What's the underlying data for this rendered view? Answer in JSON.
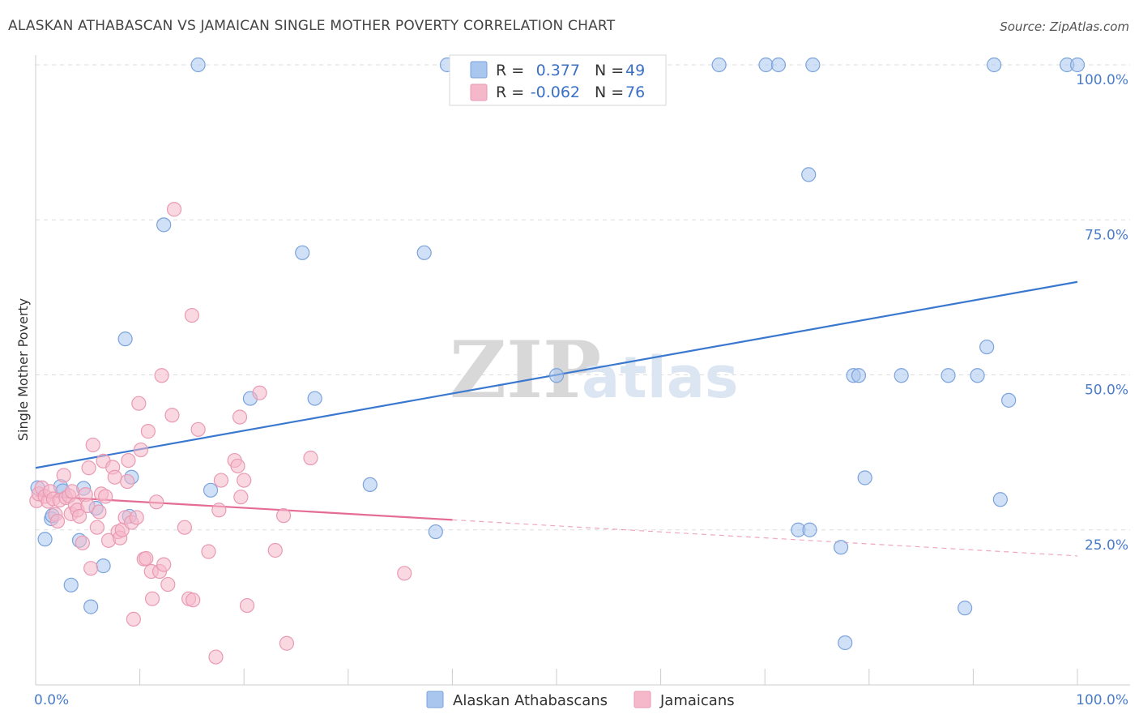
{
  "title": "ALASKAN ATHABASCAN VS JAMAICAN SINGLE MOTHER POVERTY CORRELATION CHART",
  "source": "Source: ZipAtlas.com",
  "watermark": {
    "zip": "ZIP",
    "atlas": "atlas"
  },
  "colors": {
    "blue_fill": "#a9c6ee",
    "blue_stroke": "#7ba3dc",
    "blue_line": "#3a78d0",
    "pink_fill": "#f5b8cb",
    "pink_stroke": "#e99ab3",
    "pink_line": "#e46c95",
    "tick_blue": "#4a7cc9",
    "grid": "#dddddd"
  },
  "legend": {
    "rows": [
      {
        "r_label": "R =",
        "r_value": "0.377",
        "n_label": "N =",
        "n_value": "49"
      },
      {
        "r_label": "R =",
        "r_value": "-0.062",
        "n_label": "N =",
        "n_value": "76"
      }
    ]
  },
  "chart_data": {
    "type": "scatter",
    "title": "ALASKAN ATHABASCAN VS JAMAICAN SINGLE MOTHER POVERTY CORRELATION CHART",
    "xlabel": "",
    "ylabel": "Single Mother Poverty",
    "xlim": [
      0,
      100
    ],
    "ylim": [
      0,
      100
    ],
    "grid": true,
    "legend_position": "top-center",
    "x_tick_labels": [
      "0.0%",
      "100.0%"
    ],
    "y_tick_labels": [
      {
        "value": 100,
        "label": "100.0%"
      },
      {
        "value": 75,
        "label": "75.0%"
      },
      {
        "value": 50,
        "label": "50.0%"
      },
      {
        "value": 25,
        "label": "25.0%"
      }
    ],
    "series": [
      {
        "name": "Alaskan Athabascans",
        "color": "#a9c6ee",
        "trend": {
          "x": [
            0,
            100
          ],
          "y": [
            35.0,
            65.0
          ],
          "dashed_from": null
        },
        "points": [
          [
            0.2,
            31.8
          ],
          [
            0.9,
            23.5
          ],
          [
            1.5,
            26.8
          ],
          [
            1.6,
            27.3
          ],
          [
            2.4,
            32.0
          ],
          [
            2.6,
            31.3
          ],
          [
            3.4,
            16.1
          ],
          [
            4.2,
            23.3
          ],
          [
            4.6,
            31.7
          ],
          [
            5.3,
            12.6
          ],
          [
            5.8,
            28.5
          ],
          [
            6.5,
            19.2
          ],
          [
            8.6,
            55.8
          ],
          [
            9.0,
            27.2
          ],
          [
            9.2,
            33.5
          ],
          [
            12.3,
            74.2
          ],
          [
            15.6,
            100.0
          ],
          [
            16.8,
            31.4
          ],
          [
            20.6,
            46.2
          ],
          [
            25.6,
            69.7
          ],
          [
            26.8,
            46.2
          ],
          [
            32.1,
            32.3
          ],
          [
            37.3,
            69.7
          ],
          [
            38.4,
            24.7
          ],
          [
            39.5,
            100.0
          ],
          [
            50.0,
            100.0
          ],
          [
            50.0,
            49.9
          ],
          [
            65.6,
            100.0
          ],
          [
            70.1,
            100.0
          ],
          [
            71.3,
            100.0
          ],
          [
            74.6,
            100.0
          ],
          [
            73.2,
            25.0
          ],
          [
            74.3,
            25.0
          ],
          [
            74.2,
            82.3
          ],
          [
            77.3,
            22.2
          ],
          [
            77.7,
            6.8
          ],
          [
            78.5,
            49.9
          ],
          [
            79.0,
            49.9
          ],
          [
            79.6,
            33.4
          ],
          [
            83.1,
            49.9
          ],
          [
            87.6,
            49.9
          ],
          [
            89.2,
            12.4
          ],
          [
            90.4,
            49.9
          ],
          [
            91.3,
            54.5
          ],
          [
            92.0,
            100.0
          ],
          [
            92.6,
            29.9
          ],
          [
            93.4,
            45.9
          ],
          [
            99.0,
            100.0
          ],
          [
            100.0,
            100.0
          ]
        ]
      },
      {
        "name": "Jamaicans",
        "color": "#f5b8cb",
        "trend": {
          "x": [
            0,
            100
          ],
          "y": [
            30.5,
            20.8
          ],
          "dashed_from": 40
        },
        "points": [
          [
            0.1,
            29.7
          ],
          [
            0.3,
            30.8
          ],
          [
            0.6,
            31.8
          ],
          [
            0.9,
            30.4
          ],
          [
            1.2,
            29.6
          ],
          [
            1.4,
            31.2
          ],
          [
            1.7,
            30.0
          ],
          [
            1.9,
            27.5
          ],
          [
            2.1,
            26.4
          ],
          [
            2.3,
            29.8
          ],
          [
            2.7,
            33.8
          ],
          [
            2.9,
            30.2
          ],
          [
            3.2,
            30.5
          ],
          [
            3.4,
            27.6
          ],
          [
            3.5,
            31.2
          ],
          [
            3.8,
            29.0
          ],
          [
            4.0,
            28.2
          ],
          [
            4.2,
            27.2
          ],
          [
            4.5,
            22.9
          ],
          [
            4.8,
            30.7
          ],
          [
            5.0,
            28.9
          ],
          [
            5.1,
            35.0
          ],
          [
            5.3,
            18.8
          ],
          [
            5.5,
            38.7
          ],
          [
            5.9,
            25.4
          ],
          [
            6.1,
            27.9
          ],
          [
            6.3,
            30.8
          ],
          [
            6.5,
            36.1
          ],
          [
            6.7,
            30.4
          ],
          [
            7.0,
            23.3
          ],
          [
            7.4,
            35.1
          ],
          [
            7.6,
            33.5
          ],
          [
            7.9,
            24.7
          ],
          [
            8.1,
            23.7
          ],
          [
            8.3,
            25.0
          ],
          [
            8.6,
            27.0
          ],
          [
            8.8,
            32.8
          ],
          [
            8.9,
            36.2
          ],
          [
            9.2,
            26.2
          ],
          [
            9.4,
            10.6
          ],
          [
            9.7,
            27.0
          ],
          [
            9.9,
            45.4
          ],
          [
            10.1,
            37.9
          ],
          [
            10.4,
            20.3
          ],
          [
            10.6,
            20.4
          ],
          [
            10.8,
            40.9
          ],
          [
            11.1,
            18.3
          ],
          [
            11.2,
            13.9
          ],
          [
            11.6,
            29.5
          ],
          [
            11.9,
            18.3
          ],
          [
            12.1,
            49.9
          ],
          [
            12.3,
            19.4
          ],
          [
            12.7,
            16.2
          ],
          [
            13.1,
            43.5
          ],
          [
            13.3,
            76.7
          ],
          [
            14.3,
            25.4
          ],
          [
            14.7,
            13.9
          ],
          [
            15.1,
            13.7
          ],
          [
            15.0,
            59.6
          ],
          [
            15.6,
            41.2
          ],
          [
            16.6,
            21.5
          ],
          [
            17.3,
            4.5
          ],
          [
            17.6,
            28.2
          ],
          [
            17.8,
            33.0
          ],
          [
            19.1,
            36.2
          ],
          [
            19.4,
            35.3
          ],
          [
            19.6,
            43.2
          ],
          [
            19.7,
            30.3
          ],
          [
            20.0,
            33.0
          ],
          [
            20.3,
            12.8
          ],
          [
            21.5,
            47.1
          ],
          [
            23.0,
            21.7
          ],
          [
            23.8,
            27.3
          ],
          [
            24.1,
            6.7
          ],
          [
            26.4,
            36.6
          ],
          [
            35.4,
            18.0
          ]
        ]
      }
    ]
  },
  "bottom_legend": {
    "items": [
      {
        "label": "Alaskan Athabascans"
      },
      {
        "label": "Jamaicans"
      }
    ]
  }
}
